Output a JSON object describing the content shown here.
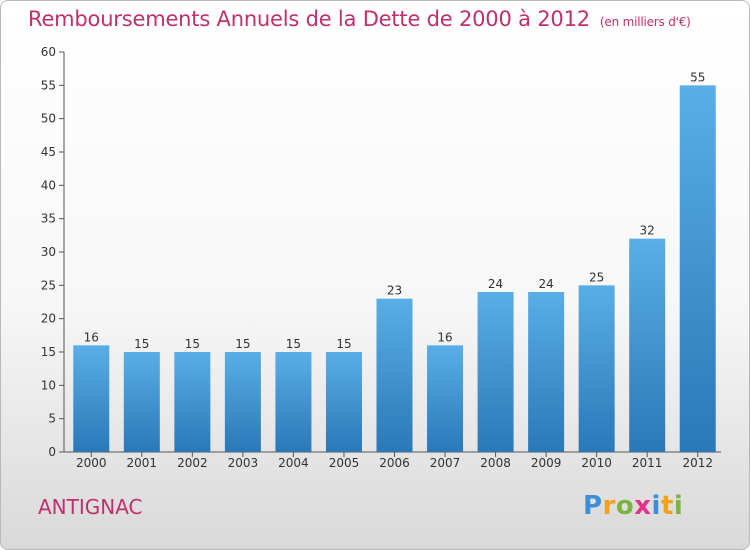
{
  "title": "Remboursements Annuels de la Dette de 2000 à 2012",
  "subtitle": "(en milliers d'€)",
  "footer_name": "ANTIGNAC",
  "logo_text": "Proxiti",
  "colors": {
    "title": "#c0306e",
    "bar_top": "#5aaee6",
    "bar_bottom": "#2a78b8"
  },
  "chart_data": {
    "type": "bar",
    "title": "Remboursements Annuels de la Dette de 2000 à 2012",
    "subtitle": "(en milliers d'€)",
    "categories": [
      "2000",
      "2001",
      "2002",
      "2003",
      "2004",
      "2005",
      "2006",
      "2007",
      "2008",
      "2009",
      "2010",
      "2011",
      "2012"
    ],
    "values": [
      16,
      15,
      15,
      15,
      15,
      15,
      23,
      16,
      24,
      24,
      25,
      32,
      55
    ],
    "ylim": [
      0,
      60
    ],
    "yticks": [
      0,
      5,
      10,
      15,
      20,
      25,
      30,
      35,
      40,
      45,
      50,
      55,
      60
    ],
    "grid": false,
    "data_labels": true
  }
}
